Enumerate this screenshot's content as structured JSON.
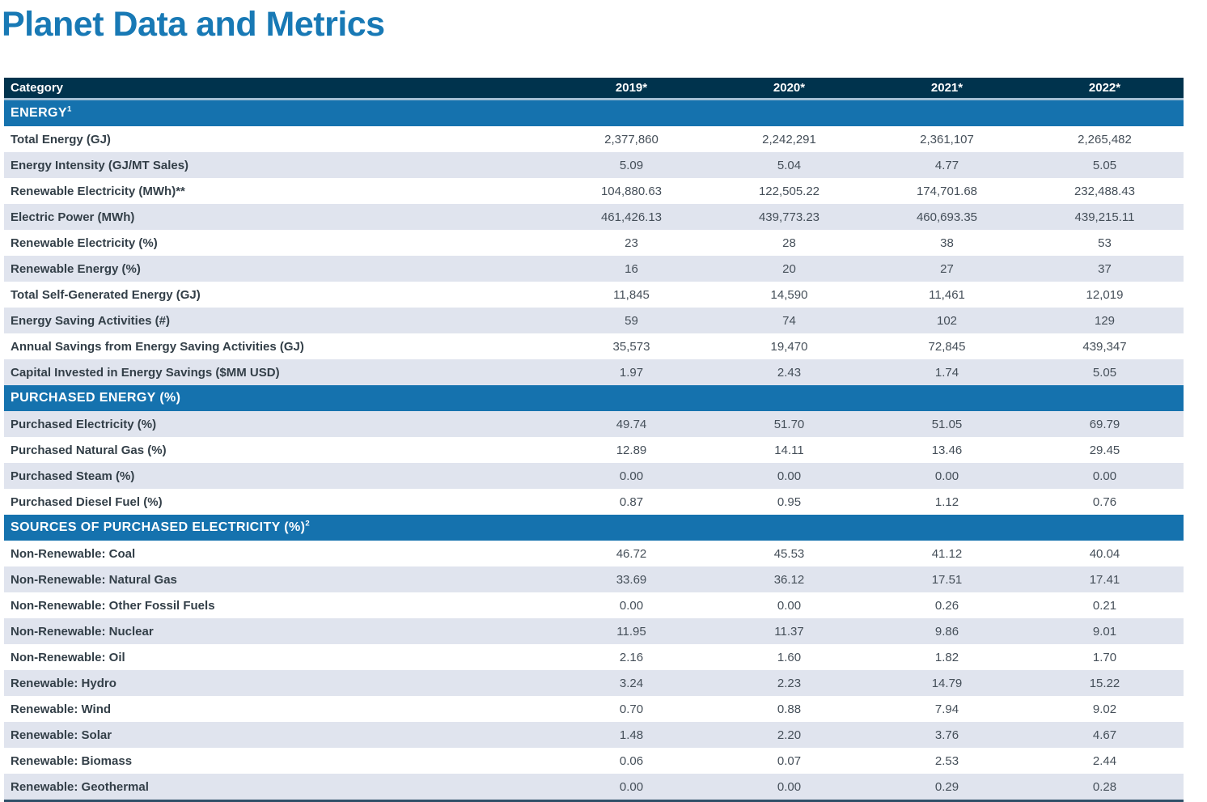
{
  "page": {
    "title": "Planet Data and Metrics"
  },
  "colors": {
    "title": "#1879b5",
    "header_bg": "#00334d",
    "section_bg": "#1572ae",
    "row_alt_bg": "#e0e4ee",
    "label_color": "#333f48",
    "value_color": "#454f59",
    "band_color": "#a3bfd3",
    "bottom_border": "#2f5068"
  },
  "table": {
    "header": {
      "category": "Category",
      "years": [
        "2019*",
        "2020*",
        "2021*",
        "2022*"
      ]
    },
    "sections": [
      {
        "title": "ENERGY",
        "sup": "1",
        "rows": [
          {
            "label": "Total Energy (GJ)",
            "values": [
              "2,377,860",
              "2,242,291",
              "2,361,107",
              "2,265,482"
            ]
          },
          {
            "label": "Energy Intensity (GJ/MT Sales)",
            "values": [
              "5.09",
              "5.04",
              "4.77",
              "5.05"
            ]
          },
          {
            "label": "Renewable Electricity (MWh)**",
            "values": [
              "104,880.63",
              "122,505.22",
              "174,701.68",
              "232,488.43"
            ]
          },
          {
            "label": "Electric Power (MWh)",
            "values": [
              "461,426.13",
              "439,773.23",
              "460,693.35",
              "439,215.11"
            ]
          },
          {
            "label": "Renewable Electricity (%)",
            "values": [
              "23",
              "28",
              "38",
              "53"
            ]
          },
          {
            "label": "Renewable Energy (%)",
            "values": [
              "16",
              "20",
              "27",
              "37"
            ]
          },
          {
            "label": "Total Self-Generated Energy (GJ)",
            "values": [
              "11,845",
              "14,590",
              "11,461",
              "12,019"
            ]
          },
          {
            "label": "Energy Saving Activities (#)",
            "values": [
              "59",
              "74",
              "102",
              "129"
            ]
          },
          {
            "label": "Annual Savings from Energy Saving Activities (GJ)",
            "values": [
              "35,573",
              "19,470",
              "72,845",
              "439,347"
            ]
          },
          {
            "label": "Capital Invested in Energy Savings ($MM USD)",
            "values": [
              "1.97",
              "2.43",
              "1.74",
              "5.05"
            ]
          }
        ]
      },
      {
        "title": "PURCHASED ENERGY (%)",
        "sup": "",
        "rows": [
          {
            "label": "Purchased Electricity (%)",
            "values": [
              "49.74",
              "51.70",
              "51.05",
              "69.79"
            ]
          },
          {
            "label": "Purchased Natural Gas (%)",
            "values": [
              "12.89",
              "14.11",
              "13.46",
              "29.45"
            ]
          },
          {
            "label": "Purchased Steam (%)",
            "values": [
              "0.00",
              "0.00",
              "0.00",
              "0.00"
            ]
          },
          {
            "label": "Purchased Diesel Fuel (%)",
            "values": [
              "0.87",
              "0.95",
              "1.12",
              "0.76"
            ]
          }
        ]
      },
      {
        "title": "SOURCES OF PURCHASED ELECTRICITY (%)",
        "sup": "2",
        "rows": [
          {
            "label": "Non-Renewable: Coal",
            "values": [
              "46.72",
              "45.53",
              "41.12",
              "40.04"
            ]
          },
          {
            "label": "Non-Renewable: Natural Gas",
            "values": [
              "33.69",
              "36.12",
              "17.51",
              "17.41"
            ]
          },
          {
            "label": "Non-Renewable: Other Fossil Fuels",
            "values": [
              "0.00",
              "0.00",
              "0.26",
              "0.21"
            ]
          },
          {
            "label": "Non-Renewable: Nuclear",
            "values": [
              "11.95",
              "11.37",
              "9.86",
              "9.01"
            ]
          },
          {
            "label": "Non-Renewable: Oil",
            "values": [
              "2.16",
              "1.60",
              "1.82",
              "1.70"
            ]
          },
          {
            "label": "Renewable: Hydro",
            "values": [
              "3.24",
              "2.23",
              "14.79",
              "15.22"
            ]
          },
          {
            "label": "Renewable: Wind",
            "values": [
              "0.70",
              "0.88",
              "7.94",
              "9.02"
            ]
          },
          {
            "label": "Renewable: Solar",
            "values": [
              "1.48",
              "2.20",
              "3.76",
              "4.67"
            ]
          },
          {
            "label": "Renewable: Biomass",
            "values": [
              "0.06",
              "0.07",
              "2.53",
              "2.44"
            ]
          },
          {
            "label": "Renewable: Geothermal",
            "values": [
              "0.00",
              "0.00",
              "0.29",
              "0.28"
            ]
          }
        ]
      }
    ]
  }
}
